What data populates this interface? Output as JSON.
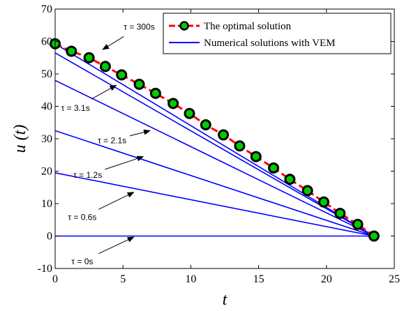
{
  "chart_data": {
    "type": "line",
    "xlabel": "t",
    "ylabel": "u (t)",
    "xlim": [
      0,
      25
    ],
    "ylim": [
      -10,
      70
    ],
    "xticks": [
      "0",
      "5",
      "10",
      "15",
      "20",
      "25"
    ],
    "yticks": [
      "-10",
      "0",
      "10",
      "20",
      "30",
      "40",
      "50",
      "60",
      "70"
    ],
    "grid": false,
    "legend_position": "top-right",
    "legend": [
      "The optimal solution",
      "Numerical solutions with VEM"
    ],
    "colors": {
      "optimal_line": "#ff0000",
      "marker_edge": "#000000",
      "marker_fill": "#00cc00",
      "vem": "#0000ff"
    },
    "optimal_solution": {
      "name": "The optimal solution",
      "x": [
        0,
        1.2,
        2.5,
        3.7,
        4.9,
        6.2,
        7.4,
        8.7,
        9.9,
        11.1,
        12.4,
        13.6,
        14.8,
        16.1,
        17.3,
        18.6,
        19.8,
        21.0,
        22.3,
        23.5
      ],
      "y": [
        59.3,
        57.0,
        55.0,
        52.3,
        49.7,
        46.8,
        44.0,
        40.9,
        37.8,
        34.3,
        31.2,
        27.8,
        24.5,
        21.0,
        17.5,
        14.0,
        10.5,
        7.0,
        3.6,
        0
      ]
    },
    "vem_series": [
      {
        "x": [
          0,
          23.5
        ],
        "y": [
          59.3,
          0
        ]
      },
      {
        "x": [
          0,
          23.5
        ],
        "y": [
          56.5,
          0
        ]
      },
      {
        "x": [
          0,
          23.5
        ],
        "y": [
          48.0,
          0
        ]
      },
      {
        "x": [
          0,
          23.5
        ],
        "y": [
          32.5,
          0
        ]
      },
      {
        "x": [
          0,
          23.5
        ],
        "y": [
          19.5,
          0
        ]
      },
      {
        "x": [
          0,
          23.5
        ],
        "y": [
          0,
          0
        ]
      }
    ],
    "annotations": [
      {
        "text": "τ = 300s",
        "text_at": [
          6.2,
          64.5
        ],
        "arrow_to": [
          3.5,
          57.5
        ]
      },
      {
        "text": "τ = 3.1s",
        "text_at": [
          1.5,
          39.5
        ],
        "arrow_to": [
          4.5,
          46.5
        ]
      },
      {
        "text": "τ = 2.1s",
        "text_at": [
          4.2,
          29.5
        ],
        "arrow_to": [
          7.0,
          32.5
        ]
      },
      {
        "text": "τ = 1.2s",
        "text_at": [
          2.4,
          18.8
        ],
        "arrow_to": [
          6.5,
          24.5
        ]
      },
      {
        "text": "τ = 0.6s",
        "text_at": [
          2.0,
          5.8
        ],
        "arrow_to": [
          5.8,
          13.5
        ]
      },
      {
        "text": "τ = 0s",
        "text_at": [
          2.0,
          -7.8
        ],
        "arrow_to": [
          5.8,
          -0.3
        ]
      }
    ]
  }
}
